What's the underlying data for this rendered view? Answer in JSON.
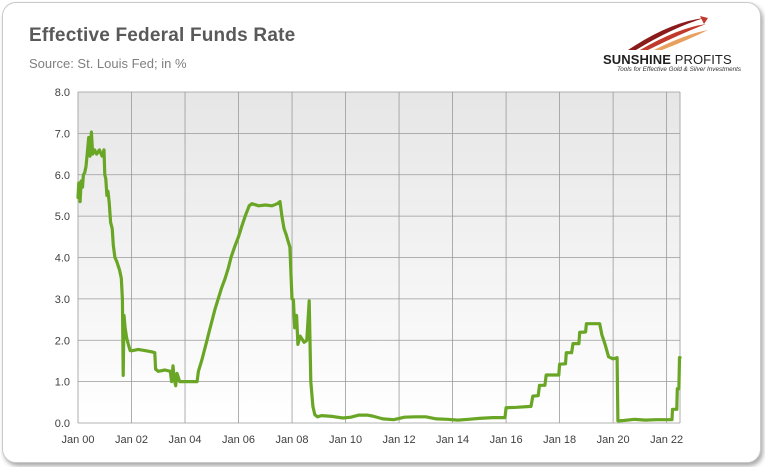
{
  "header": {
    "title": "Effective Federal Funds Rate",
    "subtitle": "Source: St. Louis Fed; in %"
  },
  "logo": {
    "name_bold": "SUNSHINE",
    "name_thin": " PROFITS",
    "tagline": "Tools for Effective Gold & Silver Investments",
    "colors": {
      "arc_dark": "#8b1a1a",
      "arc_light": "#e8a060",
      "text": "#1f1f1f"
    }
  },
  "chart_data": {
    "type": "line",
    "title": "Effective Federal Funds Rate",
    "subtitle": "Source: St. Louis Fed; in %",
    "xlabel": "",
    "ylabel": "",
    "xlim": [
      2000.0,
      2022.5
    ],
    "ylim": [
      0,
      8
    ],
    "x_ticks": [
      {
        "x": 2000,
        "label": "Jan 00"
      },
      {
        "x": 2002,
        "label": "Jan 02"
      },
      {
        "x": 2004,
        "label": "Jan 04"
      },
      {
        "x": 2006,
        "label": "Jan 06"
      },
      {
        "x": 2008,
        "label": "Jan 08"
      },
      {
        "x": 2010,
        "label": "Jan 10"
      },
      {
        "x": 2012,
        "label": "Jan 12"
      },
      {
        "x": 2014,
        "label": "Jan 14"
      },
      {
        "x": 2016,
        "label": "Jan 16"
      },
      {
        "x": 2018,
        "label": "Jan 18"
      },
      {
        "x": 2020,
        "label": "Jan 20"
      },
      {
        "x": 2022,
        "label": "Jan 22"
      }
    ],
    "y_ticks": [
      {
        "y": 0,
        "label": "0.0"
      },
      {
        "y": 1,
        "label": "1.0"
      },
      {
        "y": 2,
        "label": "2.0"
      },
      {
        "y": 3,
        "label": "3.0"
      },
      {
        "y": 4,
        "label": "4.0"
      },
      {
        "y": 5,
        "label": "5.0"
      },
      {
        "y": 6,
        "label": "6.0"
      },
      {
        "y": 7,
        "label": "7.0"
      },
      {
        "y": 8,
        "label": "8.0"
      }
    ],
    "grid": true,
    "legend": "none",
    "colors": {
      "line": "#6aa625",
      "plot_bg_top": "#e6e6e6",
      "plot_bg_bottom": "#ffffff",
      "grid": "#9a9a9a"
    },
    "series": [
      {
        "points": [
          [
            2000.0,
            5.45
          ],
          [
            2000.03,
            5.8
          ],
          [
            2000.08,
            5.35
          ],
          [
            2000.12,
            5.85
          ],
          [
            2000.17,
            5.7
          ],
          [
            2000.2,
            6.0
          ],
          [
            2000.25,
            6.05
          ],
          [
            2000.3,
            6.2
          ],
          [
            2000.35,
            6.55
          ],
          [
            2000.4,
            6.9
          ],
          [
            2000.45,
            6.45
          ],
          [
            2000.5,
            7.03
          ],
          [
            2000.55,
            6.5
          ],
          [
            2000.62,
            6.6
          ],
          [
            2000.7,
            6.5
          ],
          [
            2000.8,
            6.6
          ],
          [
            2000.9,
            6.45
          ],
          [
            2000.97,
            6.6
          ],
          [
            2001.0,
            6.0
          ],
          [
            2001.04,
            5.9
          ],
          [
            2001.08,
            5.5
          ],
          [
            2001.12,
            5.6
          ],
          [
            2001.17,
            5.3
          ],
          [
            2001.22,
            4.85
          ],
          [
            2001.28,
            4.7
          ],
          [
            2001.32,
            4.3
          ],
          [
            2001.38,
            4.0
          ],
          [
            2001.45,
            3.9
          ],
          [
            2001.55,
            3.7
          ],
          [
            2001.62,
            3.5
          ],
          [
            2001.66,
            3.0
          ],
          [
            2001.69,
            1.15
          ],
          [
            2001.72,
            2.6
          ],
          [
            2001.76,
            2.3
          ],
          [
            2001.82,
            2.05
          ],
          [
            2001.88,
            1.9
          ],
          [
            2001.95,
            1.75
          ],
          [
            2002.05,
            1.75
          ],
          [
            2002.25,
            1.78
          ],
          [
            2002.5,
            1.75
          ],
          [
            2002.75,
            1.72
          ],
          [
            2002.87,
            1.7
          ],
          [
            2002.9,
            1.3
          ],
          [
            2003.0,
            1.25
          ],
          [
            2003.25,
            1.28
          ],
          [
            2003.45,
            1.25
          ],
          [
            2003.5,
            1.0
          ],
          [
            2003.55,
            1.38
          ],
          [
            2003.6,
            1.05
          ],
          [
            2003.65,
            0.9
          ],
          [
            2003.7,
            1.2
          ],
          [
            2003.8,
            1.0
          ],
          [
            2004.0,
            1.0
          ],
          [
            2004.25,
            1.0
          ],
          [
            2004.45,
            1.0
          ],
          [
            2004.5,
            1.25
          ],
          [
            2004.62,
            1.5
          ],
          [
            2004.72,
            1.75
          ],
          [
            2004.82,
            2.0
          ],
          [
            2004.92,
            2.25
          ],
          [
            2005.02,
            2.5
          ],
          [
            2005.12,
            2.75
          ],
          [
            2005.24,
            3.0
          ],
          [
            2005.36,
            3.25
          ],
          [
            2005.5,
            3.5
          ],
          [
            2005.62,
            3.75
          ],
          [
            2005.72,
            4.0
          ],
          [
            2005.85,
            4.25
          ],
          [
            2006.0,
            4.5
          ],
          [
            2006.12,
            4.75
          ],
          [
            2006.25,
            5.0
          ],
          [
            2006.4,
            5.25
          ],
          [
            2006.5,
            5.3
          ],
          [
            2006.75,
            5.25
          ],
          [
            2007.0,
            5.27
          ],
          [
            2007.25,
            5.25
          ],
          [
            2007.45,
            5.3
          ],
          [
            2007.55,
            5.35
          ],
          [
            2007.62,
            5.0
          ],
          [
            2007.7,
            4.7
          ],
          [
            2007.78,
            4.55
          ],
          [
            2007.85,
            4.4
          ],
          [
            2007.92,
            4.25
          ],
          [
            2008.0,
            3.0
          ],
          [
            2008.05,
            2.98
          ],
          [
            2008.1,
            2.3
          ],
          [
            2008.17,
            2.6
          ],
          [
            2008.22,
            1.9
          ],
          [
            2008.3,
            2.1
          ],
          [
            2008.45,
            1.95
          ],
          [
            2008.55,
            2.0
          ],
          [
            2008.64,
            2.95
          ],
          [
            2008.7,
            1.0
          ],
          [
            2008.78,
            0.4
          ],
          [
            2008.85,
            0.2
          ],
          [
            2008.95,
            0.15
          ],
          [
            2009.1,
            0.18
          ],
          [
            2009.5,
            0.16
          ],
          [
            2009.9,
            0.12
          ],
          [
            2010.2,
            0.14
          ],
          [
            2010.5,
            0.19
          ],
          [
            2010.8,
            0.19
          ],
          [
            2011.0,
            0.17
          ],
          [
            2011.4,
            0.1
          ],
          [
            2011.8,
            0.08
          ],
          [
            2012.2,
            0.14
          ],
          [
            2012.6,
            0.15
          ],
          [
            2013.0,
            0.15
          ],
          [
            2013.4,
            0.1
          ],
          [
            2013.8,
            0.09
          ],
          [
            2014.2,
            0.07
          ],
          [
            2014.6,
            0.09
          ],
          [
            2015.0,
            0.11
          ],
          [
            2015.5,
            0.13
          ],
          [
            2015.96,
            0.13
          ],
          [
            2016.0,
            0.37
          ],
          [
            2016.4,
            0.38
          ],
          [
            2016.93,
            0.4
          ],
          [
            2017.0,
            0.65
          ],
          [
            2017.2,
            0.66
          ],
          [
            2017.25,
            0.91
          ],
          [
            2017.45,
            0.91
          ],
          [
            2017.5,
            1.16
          ],
          [
            2017.97,
            1.16
          ],
          [
            2018.0,
            1.42
          ],
          [
            2018.22,
            1.43
          ],
          [
            2018.25,
            1.7
          ],
          [
            2018.45,
            1.7
          ],
          [
            2018.5,
            1.92
          ],
          [
            2018.72,
            1.92
          ],
          [
            2018.75,
            2.19
          ],
          [
            2018.97,
            2.2
          ],
          [
            2019.0,
            2.4
          ],
          [
            2019.5,
            2.4
          ],
          [
            2019.58,
            2.13
          ],
          [
            2019.7,
            1.9
          ],
          [
            2019.83,
            1.6
          ],
          [
            2020.0,
            1.55
          ],
          [
            2020.15,
            1.58
          ],
          [
            2020.18,
            0.05
          ],
          [
            2020.4,
            0.06
          ],
          [
            2020.8,
            0.09
          ],
          [
            2021.2,
            0.07
          ],
          [
            2021.6,
            0.08
          ],
          [
            2022.0,
            0.08
          ],
          [
            2022.2,
            0.08
          ],
          [
            2022.22,
            0.33
          ],
          [
            2022.38,
            0.33
          ],
          [
            2022.4,
            0.83
          ],
          [
            2022.46,
            0.83
          ],
          [
            2022.48,
            1.58
          ],
          [
            2022.5,
            1.58
          ]
        ]
      }
    ]
  }
}
